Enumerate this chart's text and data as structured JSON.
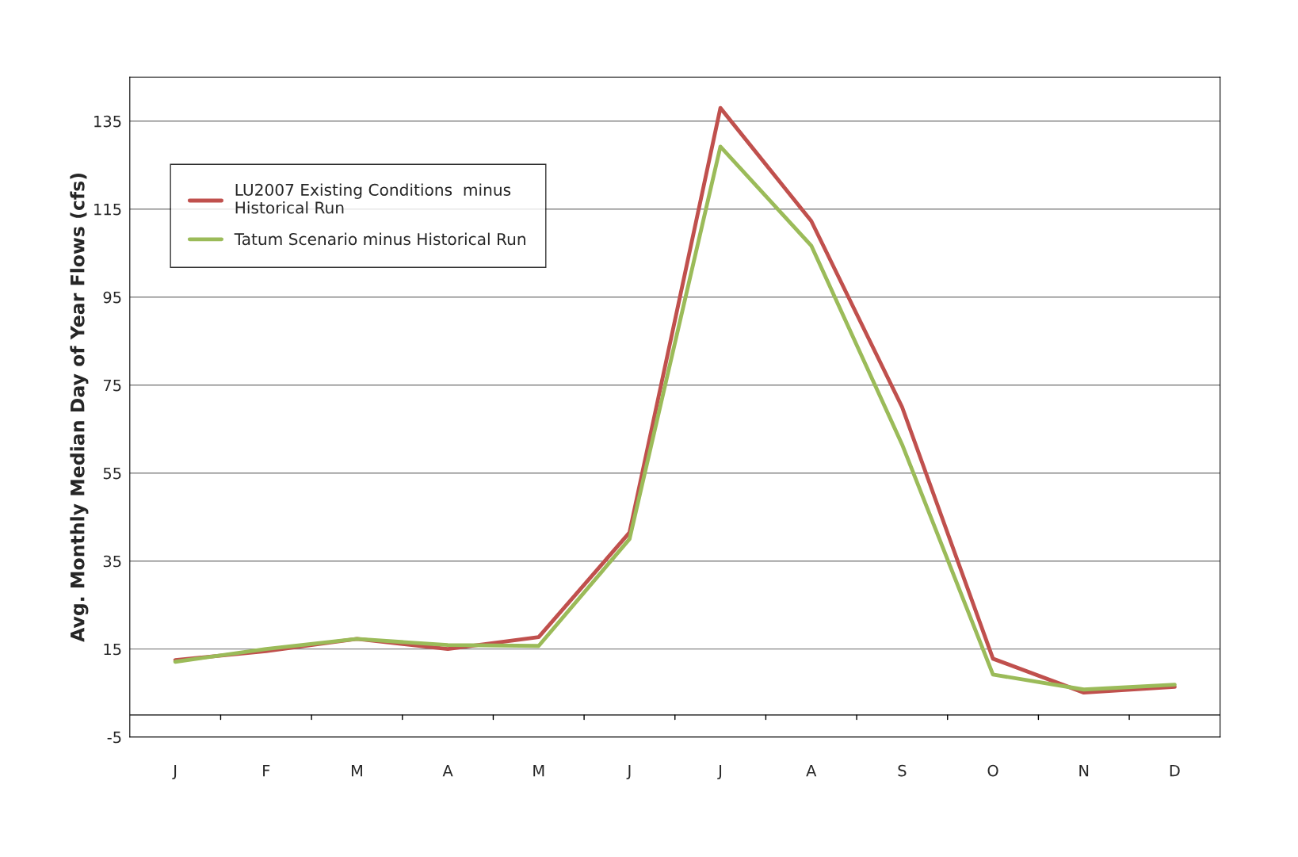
{
  "chart_data": {
    "type": "line",
    "ylabel": "Avg. Monthly Median Day of Year Flows (cfs)",
    "categories": [
      "J",
      "F",
      "M",
      "A",
      "M",
      "J",
      "J",
      "A",
      "S",
      "O",
      "N",
      "D"
    ],
    "series": [
      {
        "name": "LU2007 Existing Conditions  minus\nHistorical Run",
        "color": "#c0504d",
        "values": [
          12.5,
          14.5,
          17.3,
          15,
          17.7,
          41.5,
          138,
          112.3,
          70,
          12.8,
          5.1,
          6.4
        ]
      },
      {
        "name": "Tatum Scenario minus Historical Run",
        "color": "#9bbb59",
        "values": [
          12.1,
          15,
          17.3,
          15.9,
          15.7,
          40,
          129.2,
          106.7,
          61.5,
          9.2,
          5.8,
          6.9
        ]
      }
    ],
    "ylim": [
      -5,
      145
    ],
    "yticks": [
      -5,
      15,
      35,
      55,
      75,
      95,
      115,
      135
    ],
    "ref_lines": [
      {
        "axis": "y",
        "value": 0,
        "color": "#000000"
      }
    ],
    "grid": "y",
    "legend": "top left",
    "marker": "none",
    "line_style": "solid"
  }
}
